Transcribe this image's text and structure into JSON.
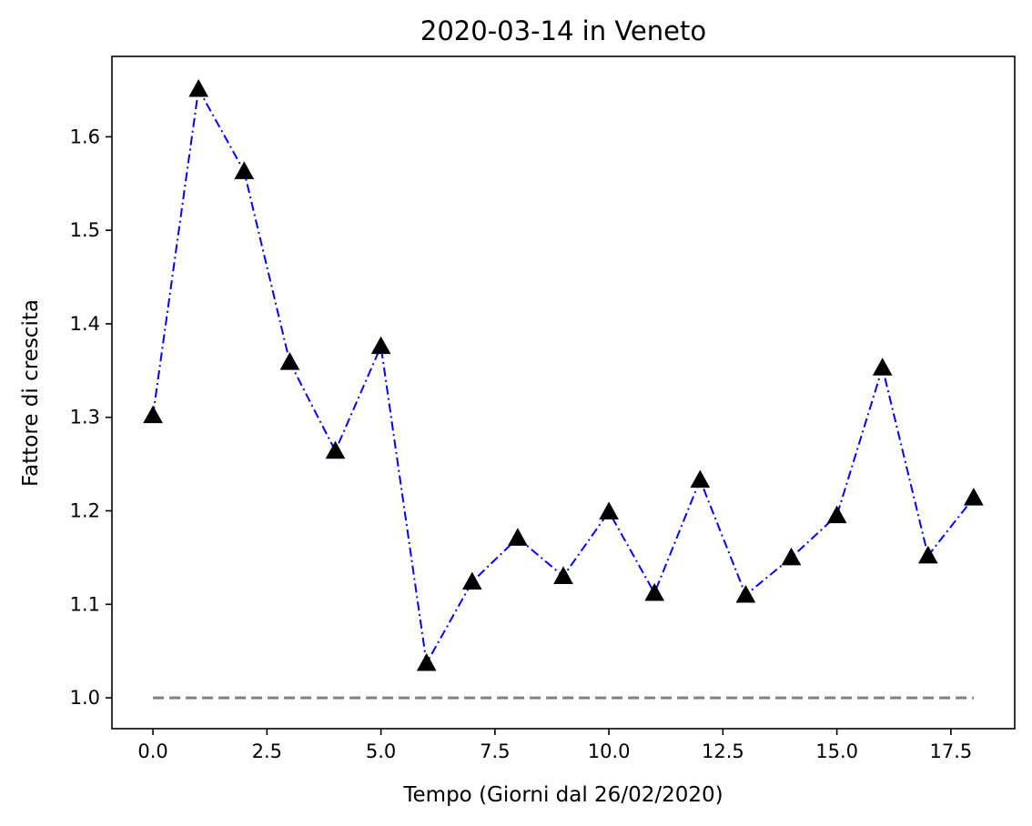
{
  "chart_data": {
    "type": "line",
    "title": "2020-03-14 in Veneto",
    "xlabel": "Tempo (Giorni dal 26/02/2020)",
    "ylabel": "Fattore di crescita",
    "xlim": [
      -0.9,
      18.9
    ],
    "ylim": [
      0.967,
      1.686
    ],
    "x_ticks": [
      0,
      2.5,
      5,
      7.5,
      10,
      12.5,
      15,
      17.5
    ],
    "x_tick_labels": [
      "0.0",
      "2.5",
      "5.0",
      "7.5",
      "10.0",
      "12.5",
      "15.0",
      "17.5"
    ],
    "y_ticks": [
      1.0,
      1.1,
      1.2,
      1.3,
      1.4,
      1.5,
      1.6
    ],
    "y_tick_labels": [
      "1.0",
      "1.1",
      "1.2",
      "1.3",
      "1.4",
      "1.5",
      "1.6"
    ],
    "grid": false,
    "series": [
      {
        "style": "dashdot",
        "color": "#0000ff",
        "marker": "triangle",
        "marker_color": "#000000",
        "x": [
          0,
          1,
          2,
          3,
          4,
          5,
          6,
          7,
          8,
          9,
          10,
          11,
          12,
          13,
          14,
          15,
          16,
          17,
          18
        ],
        "values": [
          1.302,
          1.651,
          1.563,
          1.359,
          1.264,
          1.376,
          1.037,
          1.124,
          1.171,
          1.13,
          1.199,
          1.112,
          1.233,
          1.11,
          1.15,
          1.195,
          1.353,
          1.152,
          1.214
        ]
      },
      {
        "style": "dashed",
        "color": "#808080",
        "x": [
          0,
          18
        ],
        "values": [
          1.0,
          1.0
        ]
      }
    ]
  }
}
